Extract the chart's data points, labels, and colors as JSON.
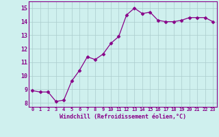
{
  "x": [
    0,
    1,
    2,
    3,
    4,
    5,
    6,
    7,
    8,
    9,
    10,
    11,
    12,
    13,
    14,
    15,
    16,
    17,
    18,
    19,
    20,
    21,
    22,
    23
  ],
  "y": [
    8.9,
    8.8,
    8.8,
    8.1,
    8.2,
    9.6,
    10.4,
    11.4,
    11.2,
    11.6,
    12.4,
    12.9,
    14.5,
    15.0,
    14.6,
    14.7,
    14.1,
    14.0,
    14.0,
    14.1,
    14.3,
    14.3,
    14.3,
    14.0
  ],
  "xlabel": "Windchill (Refroidissement éolien,°C)",
  "xlim": [
    -0.5,
    23.5
  ],
  "ylim": [
    7.7,
    15.5
  ],
  "yticks": [
    8,
    9,
    10,
    11,
    12,
    13,
    14,
    15
  ],
  "xticks": [
    0,
    1,
    2,
    3,
    4,
    5,
    6,
    7,
    8,
    9,
    10,
    11,
    12,
    13,
    14,
    15,
    16,
    17,
    18,
    19,
    20,
    21,
    22,
    23
  ],
  "xtick_labels": [
    "0",
    "1",
    "2",
    "3",
    "4",
    "5",
    "6",
    "7",
    "8",
    "9",
    "10",
    "11",
    "12",
    "13",
    "14",
    "15",
    "16",
    "17",
    "18",
    "19",
    "20",
    "21",
    "22",
    "23"
  ],
  "line_color": "#880088",
  "marker": "D",
  "marker_size": 2.5,
  "bg_color": "#cff0ee",
  "grid_color": "#aacccc",
  "label_color": "#880088",
  "tick_color": "#880088"
}
